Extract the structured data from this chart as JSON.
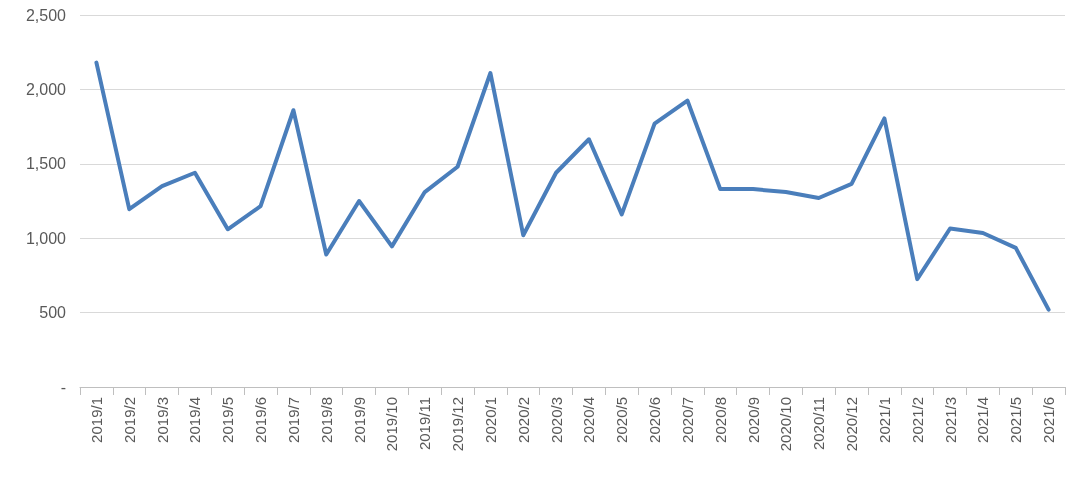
{
  "chart_data": {
    "type": "line",
    "categories": [
      "2019/1",
      "2019/2",
      "2019/3",
      "2019/4",
      "2019/5",
      "2019/6",
      "2019/7",
      "2019/8",
      "2019/9",
      "2019/10",
      "2019/11",
      "2019/12",
      "2020/1",
      "2020/2",
      "2020/3",
      "2020/4",
      "2020/5",
      "2020/6",
      "2020/7",
      "2020/8",
      "2020/9",
      "2020/10",
      "2020/11",
      "2020/12",
      "2021/1",
      "2021/2",
      "2021/3",
      "2021/4",
      "2021/5",
      "2021/6"
    ],
    "series": [
      {
        "color": "#4a7ebb",
        "values": [
          2180,
          1195,
          1350,
          1440,
          1060,
          1215,
          1860,
          890,
          1250,
          945,
          1310,
          1480,
          2110,
          1020,
          1440,
          1665,
          1160,
          1770,
          1925,
          1330,
          1330,
          1310,
          1270,
          1365,
          1805,
          725,
          1065,
          1035,
          935,
          520
        ]
      }
    ],
    "ylim": [
      0,
      2500
    ],
    "yticks": [
      {
        "value": 0,
        "label": "-"
      },
      500,
      {
        "value": 1000,
        "label": "1,000"
      },
      {
        "value": 1500,
        "label": "1,500"
      },
      {
        "value": 2000,
        "label": "2,000"
      },
      {
        "value": 2500,
        "label": "2,500"
      }
    ],
    "grid": "y",
    "line_style": "solid"
  }
}
